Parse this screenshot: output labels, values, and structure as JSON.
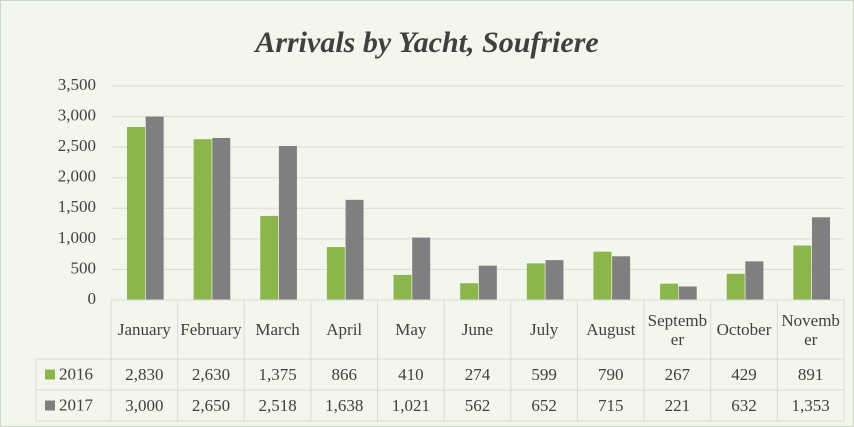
{
  "chart_data": {
    "type": "bar",
    "title": "Arrivals by Yacht, Soufriere",
    "categories": [
      "January",
      "February",
      "March",
      "April",
      "May",
      "June",
      "July",
      "August",
      "September",
      "October",
      "November"
    ],
    "series": [
      {
        "name": "2016",
        "color": "#8cb64c",
        "values": [
          2830,
          2630,
          1375,
          866,
          410,
          274,
          599,
          790,
          267,
          429,
          891
        ],
        "value_labels": [
          "2,830",
          "2,630",
          "1,375",
          "866",
          "410",
          "274",
          "599",
          "790",
          "267",
          "429",
          "891"
        ]
      },
      {
        "name": "2017",
        "color": "#7f7f7f",
        "values": [
          3000,
          2650,
          2518,
          1638,
          1021,
          562,
          652,
          715,
          221,
          632,
          1353
        ],
        "value_labels": [
          "3,000",
          "2,650",
          "2,518",
          "1,638",
          "1,021",
          "562",
          "652",
          "715",
          "221",
          "632",
          "1,353"
        ]
      }
    ],
    "ylim": [
      0,
      3500
    ],
    "yticks": [
      0,
      500,
      {
        "value": 1000,
        "label": "1,000"
      },
      {
        "value": 1500,
        "label": "1,500"
      },
      {
        "value": 2000,
        "label": "2,000"
      },
      {
        "value": 2500,
        "label": "2,500"
      },
      {
        "value": 3000,
        "label": "3,000"
      },
      {
        "value": 3500,
        "label": "3,500"
      }
    ],
    "grid": true
  }
}
